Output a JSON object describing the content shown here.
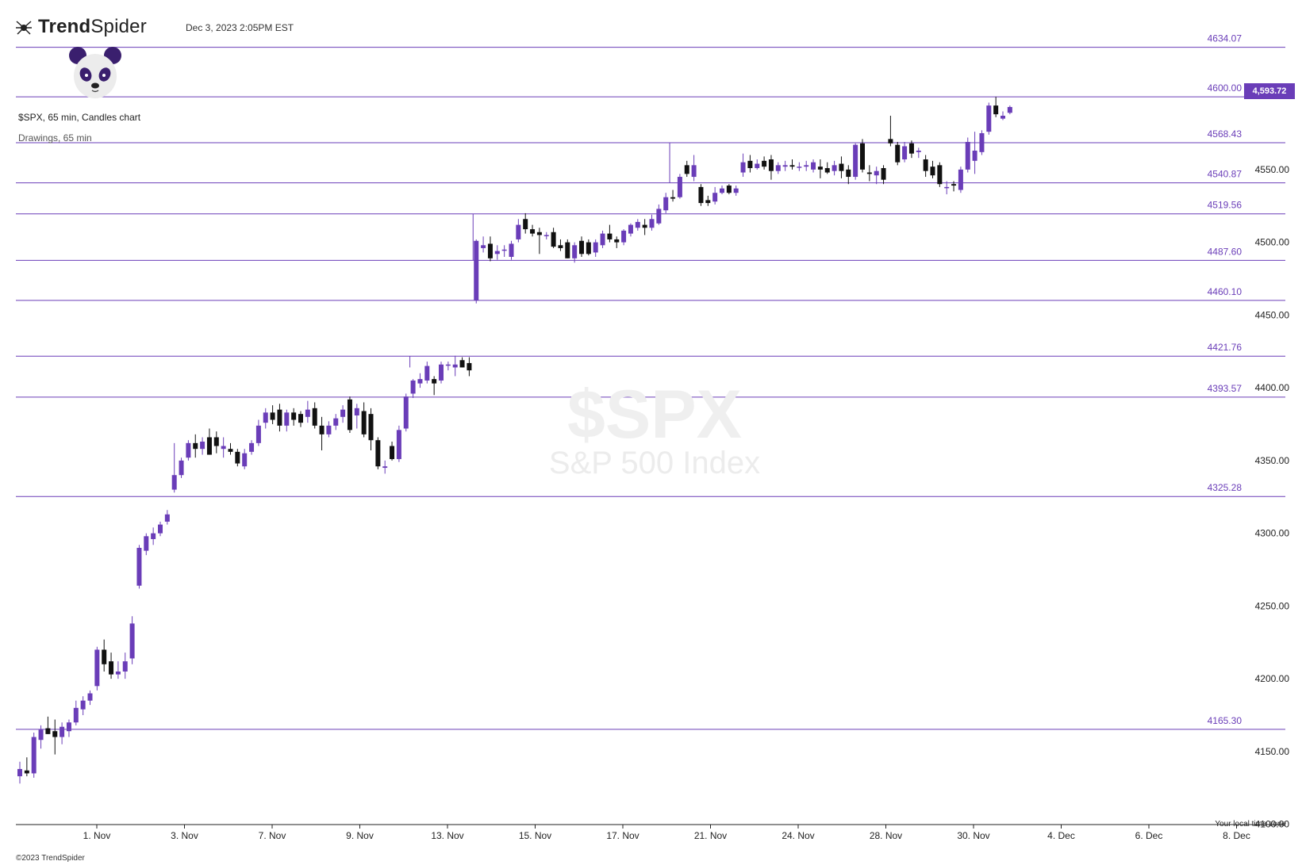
{
  "header": {
    "brand_bold": "Trend",
    "brand_light": "Spider",
    "timestamp": "Dec 3, 2023 2:05PM EST",
    "chart_info": "$SPX, 65 min, Candles chart",
    "drawings_label": "Drawings, 65 min"
  },
  "watermark": {
    "symbol": "$SPX",
    "name": "S&P 500 Index"
  },
  "footer": {
    "copyright": "©2023 TrendSpider",
    "timezone_label": "Your local time zone"
  },
  "last_price": "4,593.72",
  "colors": {
    "accent": "#6a3db8",
    "up_candle": "#6a3db8",
    "down_candle": "#111111",
    "level_line": "#6a3db8"
  },
  "chart_data": {
    "type": "candlestick",
    "symbol": "$SPX",
    "interval": "65 min",
    "ylim": [
      4090,
      4660
    ],
    "y_ticks": [
      4100,
      4150,
      4200,
      4250,
      4300,
      4350,
      4400,
      4450,
      4500,
      4550
    ],
    "y_tick_labels": [
      "4100.00",
      "4150.00",
      "4200.00",
      "4250.00",
      "4300.00",
      "4350.00",
      "4400.00",
      "4450.00",
      "4500.00",
      "4550.00"
    ],
    "x_labels": [
      "1. Nov",
      "3. Nov",
      "7. Nov",
      "9. Nov",
      "13. Nov",
      "15. Nov",
      "17. Nov",
      "21. Nov",
      "24. Nov",
      "28. Nov",
      "30. Nov",
      "4. Dec",
      "6. Dec",
      "8. Dec"
    ],
    "levels": [
      {
        "value": 4634.07,
        "label": "4634.07"
      },
      {
        "value": 4600.0,
        "label": "4600.00"
      },
      {
        "value": 4568.43,
        "label": "4568.43"
      },
      {
        "value": 4540.87,
        "label": "4540.87"
      },
      {
        "value": 4519.56,
        "label": "4519.56"
      },
      {
        "value": 4487.6,
        "label": "4487.60"
      },
      {
        "value": 4460.1,
        "label": "4460.10"
      },
      {
        "value": 4421.76,
        "label": "4421.76"
      },
      {
        "value": 4393.57,
        "label": "4393.57"
      },
      {
        "value": 4325.28,
        "label": "4325.28"
      },
      {
        "value": 4165.3,
        "label": "4165.30"
      }
    ],
    "range_boxes": [
      {
        "top": 4421.76,
        "bottom": 4414,
        "start_index": 56
      },
      {
        "top": 4519.56,
        "bottom": 4487.6,
        "start_index": 65
      },
      {
        "top": 4568.43,
        "bottom": 4540.87,
        "start_index": 93
      }
    ],
    "candles": [
      {
        "o": 4133,
        "h": 4143,
        "l": 4128,
        "c": 4138
      },
      {
        "o": 4137,
        "h": 4146,
        "l": 4133,
        "c": 4135
      },
      {
        "o": 4135,
        "h": 4163,
        "l": 4132,
        "c": 4160
      },
      {
        "o": 4158,
        "h": 4168,
        "l": 4152,
        "c": 4165
      },
      {
        "o": 4166,
        "h": 4174,
        "l": 4162,
        "c": 4162
      },
      {
        "o": 4164,
        "h": 4172,
        "l": 4148,
        "c": 4160
      },
      {
        "o": 4160,
        "h": 4170,
        "l": 4155,
        "c": 4167
      },
      {
        "o": 4164,
        "h": 4172,
        "l": 4160,
        "c": 4170
      },
      {
        "o": 4170,
        "h": 4185,
        "l": 4168,
        "c": 4180
      },
      {
        "o": 4179,
        "h": 4188,
        "l": 4175,
        "c": 4185
      },
      {
        "o": 4185,
        "h": 4192,
        "l": 4182,
        "c": 4190
      },
      {
        "o": 4195,
        "h": 4222,
        "l": 4192,
        "c": 4220
      },
      {
        "o": 4220,
        "h": 4227,
        "l": 4205,
        "c": 4210
      },
      {
        "o": 4212,
        "h": 4218,
        "l": 4200,
        "c": 4203
      },
      {
        "o": 4203,
        "h": 4212,
        "l": 4200,
        "c": 4205
      },
      {
        "o": 4205,
        "h": 4218,
        "l": 4200,
        "c": 4212
      },
      {
        "o": 4214,
        "h": 4243,
        "l": 4210,
        "c": 4238
      },
      {
        "o": 4264,
        "h": 4292,
        "l": 4262,
        "c": 4290
      },
      {
        "o": 4288,
        "h": 4300,
        "l": 4285,
        "c": 4298
      },
      {
        "o": 4296,
        "h": 4304,
        "l": 4292,
        "c": 4300
      },
      {
        "o": 4300,
        "h": 4308,
        "l": 4298,
        "c": 4306
      },
      {
        "o": 4308,
        "h": 4316,
        "l": 4306,
        "c": 4313
      },
      {
        "o": 4330,
        "h": 4362,
        "l": 4328,
        "c": 4340
      },
      {
        "o": 4340,
        "h": 4352,
        "l": 4338,
        "c": 4350
      },
      {
        "o": 4352,
        "h": 4364,
        "l": 4350,
        "c": 4362
      },
      {
        "o": 4362,
        "h": 4368,
        "l": 4352,
        "c": 4358
      },
      {
        "o": 4358,
        "h": 4366,
        "l": 4354,
        "c": 4363
      },
      {
        "o": 4366,
        "h": 4372,
        "l": 4354,
        "c": 4354
      },
      {
        "o": 4366,
        "h": 4370,
        "l": 4355,
        "c": 4360
      },
      {
        "o": 4358,
        "h": 4366,
        "l": 4352,
        "c": 4360
      },
      {
        "o": 4358,
        "h": 4362,
        "l": 4354,
        "c": 4356
      },
      {
        "o": 4356,
        "h": 4358,
        "l": 4346,
        "c": 4348
      },
      {
        "o": 4346,
        "h": 4358,
        "l": 4344,
        "c": 4355
      },
      {
        "o": 4356,
        "h": 4364,
        "l": 4354,
        "c": 4362
      },
      {
        "o": 4362,
        "h": 4378,
        "l": 4360,
        "c": 4374
      },
      {
        "o": 4376,
        "h": 4386,
        "l": 4372,
        "c": 4383
      },
      {
        "o": 4383,
        "h": 4388,
        "l": 4375,
        "c": 4378
      },
      {
        "o": 4385,
        "h": 4389,
        "l": 4370,
        "c": 4374
      },
      {
        "o": 4374,
        "h": 4385,
        "l": 4370,
        "c": 4383
      },
      {
        "o": 4383,
        "h": 4386,
        "l": 4374,
        "c": 4378
      },
      {
        "o": 4382,
        "h": 4384,
        "l": 4373,
        "c": 4376
      },
      {
        "o": 4380,
        "h": 4391,
        "l": 4376,
        "c": 4385
      },
      {
        "o": 4386,
        "h": 4390,
        "l": 4372,
        "c": 4374
      },
      {
        "o": 4374,
        "h": 4380,
        "l": 4357,
        "c": 4368
      },
      {
        "o": 4368,
        "h": 4377,
        "l": 4366,
        "c": 4374
      },
      {
        "o": 4374,
        "h": 4382,
        "l": 4371,
        "c": 4379
      },
      {
        "o": 4380,
        "h": 4388,
        "l": 4376,
        "c": 4385
      },
      {
        "o": 4392,
        "h": 4394,
        "l": 4369,
        "c": 4371
      },
      {
        "o": 4381,
        "h": 4389,
        "l": 4372,
        "c": 4386
      },
      {
        "o": 4384,
        "h": 4390,
        "l": 4366,
        "c": 4368
      },
      {
        "o": 4382,
        "h": 4386,
        "l": 4357,
        "c": 4364
      },
      {
        "o": 4364,
        "h": 4366,
        "l": 4344,
        "c": 4346
      },
      {
        "o": 4345,
        "h": 4350,
        "l": 4341,
        "c": 4346
      },
      {
        "o": 4360,
        "h": 4363,
        "l": 4350,
        "c": 4351
      },
      {
        "o": 4351,
        "h": 4374,
        "l": 4349,
        "c": 4371
      },
      {
        "o": 4372,
        "h": 4396,
        "l": 4370,
        "c": 4394
      },
      {
        "o": 4396,
        "h": 4406,
        "l": 4393,
        "c": 4405
      },
      {
        "o": 4403,
        "h": 4410,
        "l": 4400,
        "c": 4406
      },
      {
        "o": 4405,
        "h": 4418,
        "l": 4403,
        "c": 4415
      },
      {
        "o": 4406,
        "h": 4408,
        "l": 4395,
        "c": 4403
      },
      {
        "o": 4405,
        "h": 4418,
        "l": 4403,
        "c": 4416
      },
      {
        "o": 4416,
        "h": 4418,
        "l": 4412,
        "c": 4416
      },
      {
        "o": 4414,
        "h": 4422,
        "l": 4408,
        "c": 4416
      },
      {
        "o": 4419,
        "h": 4421,
        "l": 4414,
        "c": 4414
      },
      {
        "o": 4417,
        "h": 4421,
        "l": 4408,
        "c": 4412
      },
      {
        "o": 4460,
        "h": 4502,
        "l": 4458,
        "c": 4501
      },
      {
        "o": 4496,
        "h": 4504,
        "l": 4493,
        "c": 4498
      },
      {
        "o": 4499,
        "h": 4504,
        "l": 4487,
        "c": 4489
      },
      {
        "o": 4492,
        "h": 4498,
        "l": 4488,
        "c": 4494
      },
      {
        "o": 4495,
        "h": 4498,
        "l": 4490,
        "c": 4495
      },
      {
        "o": 4490,
        "h": 4501,
        "l": 4488,
        "c": 4499
      },
      {
        "o": 4502,
        "h": 4516,
        "l": 4500,
        "c": 4512
      },
      {
        "o": 4516,
        "h": 4520,
        "l": 4506,
        "c": 4509
      },
      {
        "o": 4509,
        "h": 4512,
        "l": 4504,
        "c": 4506
      },
      {
        "o": 4507,
        "h": 4510,
        "l": 4492,
        "c": 4505
      },
      {
        "o": 4505,
        "h": 4507,
        "l": 4502,
        "c": 4505
      },
      {
        "o": 4507,
        "h": 4510,
        "l": 4496,
        "c": 4497
      },
      {
        "o": 4498,
        "h": 4502,
        "l": 4494,
        "c": 4496
      },
      {
        "o": 4500,
        "h": 4502,
        "l": 4489,
        "c": 4489
      },
      {
        "o": 4489,
        "h": 4500,
        "l": 4486,
        "c": 4498
      },
      {
        "o": 4501,
        "h": 4504,
        "l": 4490,
        "c": 4492
      },
      {
        "o": 4500,
        "h": 4502,
        "l": 4491,
        "c": 4492
      },
      {
        "o": 4493,
        "h": 4502,
        "l": 4490,
        "c": 4500
      },
      {
        "o": 4498,
        "h": 4508,
        "l": 4496,
        "c": 4506
      },
      {
        "o": 4506,
        "h": 4512,
        "l": 4500,
        "c": 4502
      },
      {
        "o": 4502,
        "h": 4504,
        "l": 4496,
        "c": 4500
      },
      {
        "o": 4500,
        "h": 4509,
        "l": 4498,
        "c": 4508
      },
      {
        "o": 4506,
        "h": 4513,
        "l": 4504,
        "c": 4512
      },
      {
        "o": 4510,
        "h": 4516,
        "l": 4508,
        "c": 4514
      },
      {
        "o": 4512,
        "h": 4516,
        "l": 4505,
        "c": 4510
      },
      {
        "o": 4510,
        "h": 4519,
        "l": 4508,
        "c": 4516
      },
      {
        "o": 4513,
        "h": 4526,
        "l": 4512,
        "c": 4523
      },
      {
        "o": 4522,
        "h": 4534,
        "l": 4520,
        "c": 4531
      },
      {
        "o": 4531,
        "h": 4536,
        "l": 4528,
        "c": 4530
      },
      {
        "o": 4531,
        "h": 4547,
        "l": 4530,
        "c": 4545
      },
      {
        "o": 4553,
        "h": 4556,
        "l": 4545,
        "c": 4547
      },
      {
        "o": 4545,
        "h": 4560,
        "l": 4542,
        "c": 4553
      },
      {
        "o": 4538,
        "h": 4540,
        "l": 4525,
        "c": 4527
      },
      {
        "o": 4529,
        "h": 4532,
        "l": 4525,
        "c": 4527
      },
      {
        "o": 4528,
        "h": 4538,
        "l": 4526,
        "c": 4534
      },
      {
        "o": 4534,
        "h": 4539,
        "l": 4533,
        "c": 4537
      },
      {
        "o": 4539,
        "h": 4540,
        "l": 4533,
        "c": 4534
      },
      {
        "o": 4534,
        "h": 4539,
        "l": 4532,
        "c": 4537
      },
      {
        "o": 4548,
        "h": 4561,
        "l": 4545,
        "c": 4555
      },
      {
        "o": 4556,
        "h": 4560,
        "l": 4548,
        "c": 4551
      },
      {
        "o": 4551,
        "h": 4557,
        "l": 4550,
        "c": 4554
      },
      {
        "o": 4556,
        "h": 4559,
        "l": 4550,
        "c": 4552
      },
      {
        "o": 4557,
        "h": 4560,
        "l": 4543,
        "c": 4549
      },
      {
        "o": 4549,
        "h": 4555,
        "l": 4547,
        "c": 4553
      },
      {
        "o": 4552,
        "h": 4556,
        "l": 4549,
        "c": 4553
      },
      {
        "o": 4553,
        "h": 4557,
        "l": 4550,
        "c": 4552
      },
      {
        "o": 4552,
        "h": 4555,
        "l": 4549,
        "c": 4552
      },
      {
        "o": 4552,
        "h": 4556,
        "l": 4549,
        "c": 4553
      },
      {
        "o": 4550,
        "h": 4557,
        "l": 4548,
        "c": 4555
      },
      {
        "o": 4552,
        "h": 4557,
        "l": 4544,
        "c": 4550
      },
      {
        "o": 4551,
        "h": 4555,
        "l": 4547,
        "c": 4548
      },
      {
        "o": 4549,
        "h": 4556,
        "l": 4546,
        "c": 4553
      },
      {
        "o": 4554,
        "h": 4559,
        "l": 4544,
        "c": 4549
      },
      {
        "o": 4550,
        "h": 4553,
        "l": 4540,
        "c": 4545
      },
      {
        "o": 4545,
        "h": 4568,
        "l": 4543,
        "c": 4567
      },
      {
        "o": 4568,
        "h": 4571,
        "l": 4548,
        "c": 4550
      },
      {
        "o": 4548,
        "h": 4553,
        "l": 4542,
        "c": 4547
      },
      {
        "o": 4546,
        "h": 4552,
        "l": 4540,
        "c": 4549
      },
      {
        "o": 4551,
        "h": 4553,
        "l": 4540,
        "c": 4543
      },
      {
        "o": 4571,
        "h": 4587,
        "l": 4566,
        "c": 4568
      },
      {
        "o": 4567,
        "h": 4569,
        "l": 4553,
        "c": 4555
      },
      {
        "o": 4557,
        "h": 4569,
        "l": 4555,
        "c": 4566
      },
      {
        "o": 4568,
        "h": 4570,
        "l": 4558,
        "c": 4561
      },
      {
        "o": 4562,
        "h": 4565,
        "l": 4558,
        "c": 4563
      },
      {
        "o": 4557,
        "h": 4560,
        "l": 4545,
        "c": 4549
      },
      {
        "o": 4552,
        "h": 4556,
        "l": 4544,
        "c": 4546
      },
      {
        "o": 4553,
        "h": 4555,
        "l": 4538,
        "c": 4540
      },
      {
        "o": 4538,
        "h": 4542,
        "l": 4533,
        "c": 4538
      },
      {
        "o": 4540,
        "h": 4542,
        "l": 4535,
        "c": 4539
      },
      {
        "o": 4536,
        "h": 4552,
        "l": 4534,
        "c": 4550
      },
      {
        "o": 4550,
        "h": 4572,
        "l": 4548,
        "c": 4569
      },
      {
        "o": 4556,
        "h": 4576,
        "l": 4547,
        "c": 4563
      },
      {
        "o": 4562,
        "h": 4577,
        "l": 4560,
        "c": 4575
      },
      {
        "o": 4576,
        "h": 4596,
        "l": 4574,
        "c": 4594
      },
      {
        "o": 4594,
        "h": 4600,
        "l": 4586,
        "c": 4588
      },
      {
        "o": 4585,
        "h": 4590,
        "l": 4584,
        "c": 4587
      },
      {
        "o": 4589,
        "h": 4594,
        "l": 4588,
        "c": 4593
      }
    ],
    "last_price": 4593.72
  }
}
